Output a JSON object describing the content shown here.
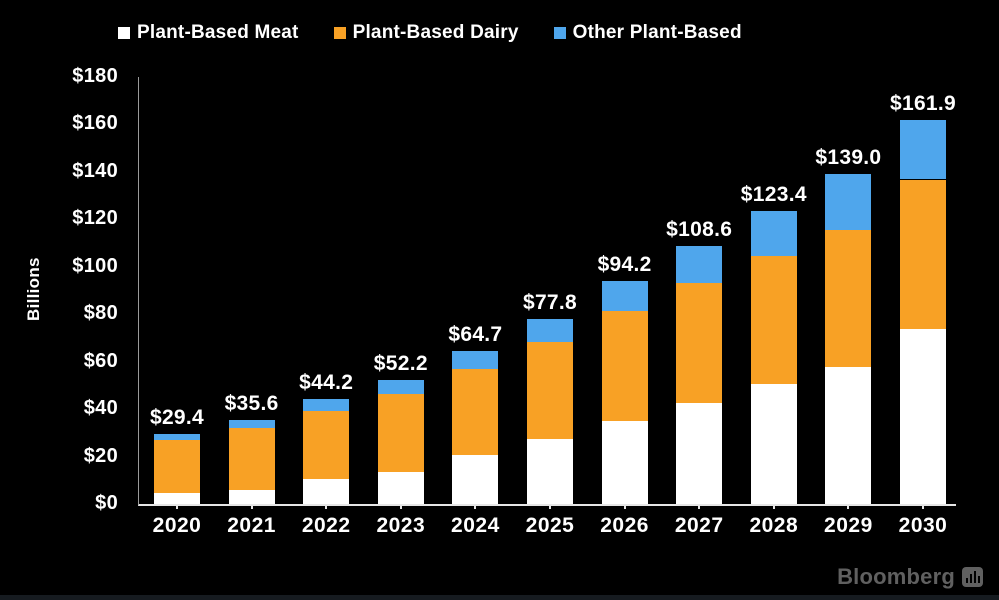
{
  "colors": {
    "background": "#000000",
    "bar_meat": "#ffffff",
    "bar_dairy": "#f8a125",
    "bar_other": "#4fa6ec",
    "axis_line": "#e6e6e6",
    "text": "#ffffff",
    "watermark": "#606060"
  },
  "legend": {
    "items": [
      {
        "label": "Plant-Based Meat",
        "color": "#ffffff"
      },
      {
        "label": "Plant-Based Dairy",
        "color": "#f8a125"
      },
      {
        "label": "Other Plant-Based",
        "color": "#4fa6ec"
      }
    ]
  },
  "chart_data": {
    "type": "bar",
    "stacked": true,
    "title": "",
    "xlabel": "",
    "ylabel": "Billions",
    "ylim": [
      0,
      180
    ],
    "ytick_step": 20,
    "ytick_labels": [
      "$0",
      "$20",
      "$40",
      "$60",
      "$80",
      "$100",
      "$120",
      "$140",
      "$160",
      "$180"
    ],
    "grid": false,
    "legend_position": "top",
    "categories": [
      "2020",
      "2021",
      "2022",
      "2023",
      "2024",
      "2025",
      "2026",
      "2027",
      "2028",
      "2029",
      "2030"
    ],
    "series": [
      {
        "name": "Plant-Based Meat",
        "color": "#ffffff",
        "values": [
          4.6,
          6.0,
          10.5,
          13.5,
          20.5,
          27.5,
          35.0,
          42.7,
          50.5,
          57.6,
          73.8
        ]
      },
      {
        "name": "Plant-Based Dairy",
        "color": "#f8a125",
        "values": [
          22.5,
          26.0,
          28.6,
          32.7,
          36.4,
          40.8,
          46.3,
          50.4,
          54.0,
          57.8,
          63.0
        ]
      },
      {
        "name": "Other Plant-Based",
        "color": "#4fa6ec",
        "values": [
          2.3,
          3.6,
          5.1,
          6.0,
          7.8,
          9.5,
          12.9,
          15.5,
          18.9,
          23.6,
          25.1
        ]
      }
    ],
    "totals": [
      29.4,
      35.6,
      44.2,
      52.2,
      64.7,
      77.8,
      94.2,
      108.6,
      123.4,
      139.0,
      161.9
    ],
    "total_labels": [
      "$29.4",
      "$35.6",
      "$44.2",
      "$52.2",
      "$64.7",
      "$77.8",
      "$94.2",
      "$108.6",
      "$123.4",
      "$139.0",
      "$161.9"
    ]
  },
  "branding": {
    "logo_text": "Bloomberg",
    "logo_icon": "chart-bars-icon"
  }
}
